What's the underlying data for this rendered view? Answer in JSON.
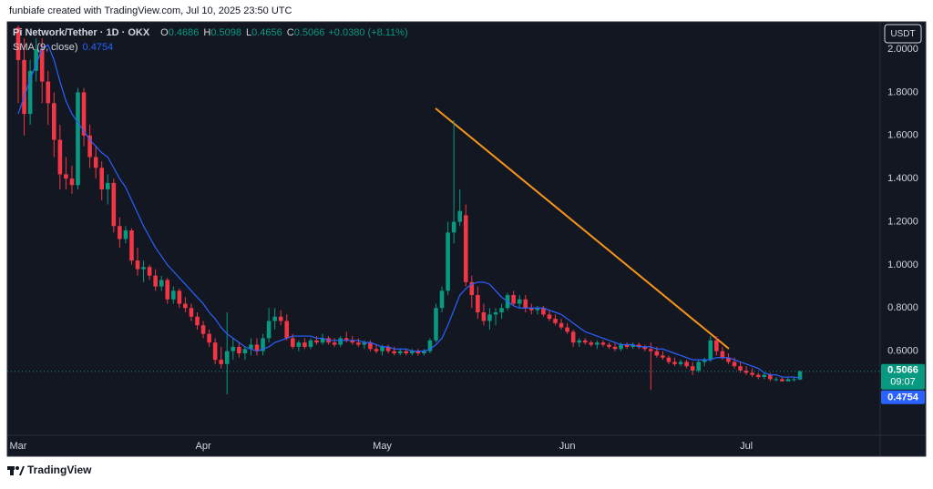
{
  "attribution": "funbiafe created with TradingView.com, Jul 10, 2025 23:50 UTC",
  "footer": "TradingView",
  "currency": "USDT",
  "chart_data": {
    "type": "candlestick",
    "title": "Pi Network/Tether · 1D · OKX",
    "ohlc_labels": [
      "O",
      "H",
      "L",
      "C"
    ],
    "change_label": "+0.0380 (+8.11%)",
    "countdown": "09:07",
    "up_color": "#089981",
    "down_color": "#f23645",
    "ylim": [
      0.21,
      2.11
    ],
    "yticks": [
      {
        "value": 0.6,
        "label": "0.6000"
      },
      {
        "value": 0.8,
        "label": "0.8000"
      },
      {
        "value": 1,
        "label": "1.0000"
      },
      {
        "value": 1.2,
        "label": "1.2000"
      },
      {
        "value": 1.4,
        "label": "1.4000"
      },
      {
        "value": 1.6,
        "label": "1.6000"
      },
      {
        "value": 1.8,
        "label": "1.8000"
      },
      {
        "value": 2,
        "label": "2.0000"
      }
    ],
    "grid": false,
    "categories": [
      "Mar",
      null,
      null,
      null,
      null,
      null,
      null,
      null,
      null,
      null,
      null,
      null,
      null,
      null,
      null,
      null,
      null,
      null,
      null,
      null,
      null,
      null,
      null,
      null,
      null,
      null,
      null,
      null,
      null,
      null,
      null,
      "Apr",
      null,
      null,
      null,
      null,
      null,
      null,
      null,
      null,
      null,
      null,
      null,
      null,
      null,
      null,
      null,
      null,
      null,
      null,
      null,
      null,
      null,
      null,
      null,
      null,
      null,
      null,
      null,
      null,
      null,
      "May",
      null,
      null,
      null,
      null,
      null,
      null,
      null,
      null,
      null,
      null,
      null,
      null,
      null,
      null,
      null,
      null,
      null,
      null,
      null,
      null,
      null,
      null,
      null,
      null,
      null,
      null,
      null,
      null,
      null,
      null,
      "Jun",
      null,
      null,
      null,
      null,
      null,
      null,
      null,
      null,
      null,
      null,
      null,
      null,
      null,
      null,
      null,
      null,
      null,
      null,
      null,
      null,
      null,
      null,
      null,
      null,
      null,
      null,
      null,
      null,
      null,
      "Jul",
      null,
      null,
      null,
      null,
      null,
      null,
      null,
      null,
      null
    ],
    "open": [
      2.1,
      1.95,
      1.7,
      1.9,
      2.0,
      1.85,
      1.75,
      1.58,
      1.42,
      1.4,
      1.37,
      1.8,
      1.6,
      1.5,
      1.45,
      1.35,
      1.38,
      1.18,
      1.12,
      1.16,
      1.02,
      0.98,
      0.99,
      0.95,
      0.9,
      0.93,
      0.84,
      0.88,
      0.82,
      0.8,
      0.76,
      0.72,
      0.68,
      0.64,
      0.56,
      0.54,
      0.6,
      0.62,
      0.59,
      0.61,
      0.63,
      0.6,
      0.66,
      0.74,
      0.76,
      0.74,
      0.66,
      0.62,
      0.64,
      0.62,
      0.65,
      0.64,
      0.66,
      0.64,
      0.63,
      0.66,
      0.65,
      0.64,
      0.63,
      0.64,
      0.61,
      0.6,
      0.62,
      0.6,
      0.59,
      0.6,
      0.59,
      0.6,
      0.59,
      0.6,
      0.65,
      0.8,
      0.88,
      1.15,
      1.2,
      1.23,
      0.92,
      0.86,
      0.78,
      0.74,
      0.77,
      0.78,
      0.8,
      0.86,
      0.82,
      0.84,
      0.8,
      0.79,
      0.8,
      0.77,
      0.75,
      0.73,
      0.71,
      0.69,
      0.64,
      0.65,
      0.64,
      0.63,
      0.64,
      0.63,
      0.62,
      0.61,
      0.63,
      0.62,
      0.63,
      0.62,
      0.61,
      0.6,
      0.58,
      0.57,
      0.55,
      0.54,
      0.55,
      0.53,
      0.51,
      0.55,
      0.56,
      0.65,
      0.6,
      0.57,
      0.55,
      0.53,
      0.51,
      0.5,
      0.49,
      0.48,
      0.49,
      0.47,
      0.47,
      0.46,
      0.47,
      0.4686
    ],
    "high": [
      2.11,
      2.05,
      1.95,
      2.05,
      2.05,
      1.9,
      1.8,
      1.65,
      1.5,
      1.46,
      1.82,
      1.82,
      1.65,
      1.55,
      1.48,
      1.42,
      1.4,
      1.22,
      1.18,
      1.17,
      1.08,
      1.02,
      1.0,
      0.98,
      0.95,
      0.94,
      0.9,
      0.89,
      0.85,
      0.82,
      0.78,
      0.74,
      0.7,
      0.66,
      0.62,
      0.78,
      0.66,
      0.64,
      0.62,
      0.66,
      0.66,
      0.68,
      0.8,
      0.8,
      0.79,
      0.77,
      0.68,
      0.65,
      0.66,
      0.66,
      0.67,
      0.68,
      0.67,
      0.66,
      0.67,
      0.69,
      0.67,
      0.66,
      0.65,
      0.65,
      0.63,
      0.63,
      0.63,
      0.62,
      0.61,
      0.61,
      0.61,
      0.61,
      0.61,
      0.66,
      0.82,
      0.9,
      1.2,
      1.67,
      1.35,
      1.28,
      0.95,
      0.9,
      0.82,
      0.8,
      0.8,
      0.82,
      0.87,
      0.88,
      0.86,
      0.86,
      0.82,
      0.81,
      0.81,
      0.79,
      0.77,
      0.75,
      0.73,
      0.7,
      0.66,
      0.66,
      0.65,
      0.65,
      0.65,
      0.64,
      0.64,
      0.64,
      0.64,
      0.64,
      0.64,
      0.63,
      0.64,
      0.62,
      0.6,
      0.58,
      0.57,
      0.56,
      0.56,
      0.55,
      0.56,
      0.57,
      0.67,
      0.67,
      0.62,
      0.59,
      0.57,
      0.55,
      0.53,
      0.52,
      0.5,
      0.5,
      0.5,
      0.48,
      0.48,
      0.48,
      0.48,
      0.5098
    ],
    "low": [
      1.75,
      1.6,
      1.65,
      1.85,
      1.75,
      1.65,
      1.5,
      1.35,
      1.35,
      1.33,
      1.35,
      1.55,
      1.45,
      1.4,
      1.3,
      1.28,
      1.15,
      1.08,
      1.1,
      1.0,
      0.95,
      0.92,
      0.93,
      0.88,
      0.88,
      0.82,
      0.82,
      0.8,
      0.78,
      0.74,
      0.7,
      0.66,
      0.62,
      0.54,
      0.52,
      0.4,
      0.56,
      0.57,
      0.56,
      0.58,
      0.58,
      0.58,
      0.64,
      0.7,
      0.72,
      0.65,
      0.61,
      0.6,
      0.61,
      0.61,
      0.63,
      0.63,
      0.63,
      0.62,
      0.62,
      0.64,
      0.63,
      0.62,
      0.61,
      0.6,
      0.59,
      0.58,
      0.59,
      0.58,
      0.58,
      0.58,
      0.58,
      0.58,
      0.58,
      0.59,
      0.64,
      0.78,
      0.86,
      1.1,
      1.18,
      0.9,
      0.8,
      0.75,
      0.72,
      0.7,
      0.72,
      0.75,
      0.79,
      0.81,
      0.8,
      0.78,
      0.77,
      0.77,
      0.76,
      0.74,
      0.72,
      0.7,
      0.68,
      0.62,
      0.62,
      0.63,
      0.62,
      0.61,
      0.62,
      0.61,
      0.6,
      0.6,
      0.61,
      0.61,
      0.61,
      0.6,
      0.42,
      0.57,
      0.56,
      0.54,
      0.53,
      0.53,
      0.52,
      0.49,
      0.5,
      0.53,
      0.55,
      0.58,
      0.56,
      0.54,
      0.52,
      0.5,
      0.49,
      0.48,
      0.47,
      0.47,
      0.46,
      0.46,
      0.46,
      0.46,
      0.46,
      0.4656
    ],
    "close": [
      1.95,
      1.7,
      1.9,
      2.0,
      1.85,
      1.75,
      1.58,
      1.42,
      1.4,
      1.37,
      1.8,
      1.6,
      1.5,
      1.45,
      1.35,
      1.38,
      1.18,
      1.12,
      1.16,
      1.02,
      0.98,
      0.99,
      0.95,
      0.9,
      0.93,
      0.84,
      0.88,
      0.82,
      0.8,
      0.76,
      0.72,
      0.68,
      0.64,
      0.56,
      0.54,
      0.6,
      0.62,
      0.59,
      0.61,
      0.63,
      0.6,
      0.66,
      0.74,
      0.76,
      0.74,
      0.66,
      0.62,
      0.64,
      0.62,
      0.65,
      0.64,
      0.66,
      0.64,
      0.63,
      0.66,
      0.65,
      0.64,
      0.63,
      0.64,
      0.61,
      0.6,
      0.62,
      0.6,
      0.59,
      0.6,
      0.59,
      0.6,
      0.59,
      0.6,
      0.65,
      0.8,
      0.88,
      1.15,
      1.2,
      1.25,
      0.92,
      0.86,
      0.78,
      0.74,
      0.77,
      0.78,
      0.8,
      0.86,
      0.82,
      0.84,
      0.8,
      0.79,
      0.8,
      0.77,
      0.75,
      0.73,
      0.71,
      0.69,
      0.64,
      0.65,
      0.64,
      0.63,
      0.64,
      0.63,
      0.62,
      0.61,
      0.63,
      0.62,
      0.63,
      0.62,
      0.61,
      0.6,
      0.58,
      0.57,
      0.55,
      0.54,
      0.55,
      0.53,
      0.51,
      0.55,
      0.56,
      0.65,
      0.6,
      0.57,
      0.55,
      0.53,
      0.51,
      0.5,
      0.49,
      0.48,
      0.49,
      0.47,
      0.47,
      0.46,
      0.47,
      0.47,
      0.5066
    ],
    "sma": {
      "name": "SMA (9, close)",
      "color": "#2962ff",
      "values": [
        1.7,
        1.78,
        1.86,
        1.93,
        2.0,
        2.02,
        1.95,
        1.85,
        1.76,
        1.7,
        1.66,
        1.62,
        1.58,
        1.55,
        1.52,
        1.5,
        1.45,
        1.4,
        1.36,
        1.3,
        1.24,
        1.18,
        1.13,
        1.08,
        1.04,
        1.0,
        0.97,
        0.94,
        0.91,
        0.88,
        0.85,
        0.82,
        0.78,
        0.75,
        0.71,
        0.68,
        0.66,
        0.64,
        0.62,
        0.61,
        0.6,
        0.61,
        0.62,
        0.64,
        0.65,
        0.66,
        0.67,
        0.67,
        0.67,
        0.67,
        0.66,
        0.66,
        0.65,
        0.65,
        0.65,
        0.65,
        0.65,
        0.65,
        0.64,
        0.64,
        0.63,
        0.62,
        0.62,
        0.61,
        0.61,
        0.61,
        0.6,
        0.6,
        0.6,
        0.61,
        0.63,
        0.66,
        0.72,
        0.79,
        0.86,
        0.89,
        0.91,
        0.92,
        0.92,
        0.91,
        0.88,
        0.85,
        0.83,
        0.81,
        0.8,
        0.8,
        0.8,
        0.8,
        0.8,
        0.79,
        0.78,
        0.77,
        0.75,
        0.73,
        0.71,
        0.69,
        0.68,
        0.67,
        0.66,
        0.65,
        0.64,
        0.63,
        0.63,
        0.63,
        0.62,
        0.62,
        0.62,
        0.61,
        0.61,
        0.6,
        0.59,
        0.58,
        0.57,
        0.56,
        0.56,
        0.56,
        0.56,
        0.57,
        0.57,
        0.57,
        0.56,
        0.55,
        0.54,
        0.53,
        0.52,
        0.5,
        0.49,
        0.49,
        0.48,
        0.48,
        0.48,
        0.4754
      ]
    }
  }
}
